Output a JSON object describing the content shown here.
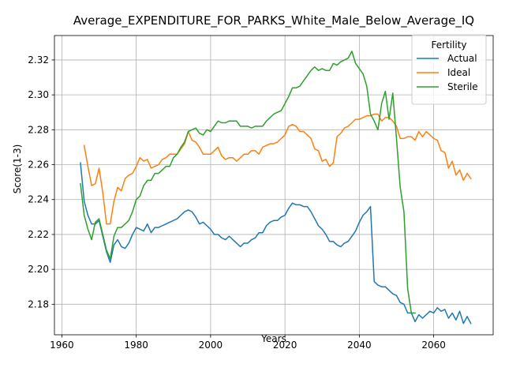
{
  "chart_data": {
    "type": "line",
    "title": "Average_EXPENDITURE_FOR_PARKS_White_Male_Below_Average_IQ",
    "xlabel": "Years",
    "ylabel": "Score(1-3)",
    "xlim": [
      1958,
      2076
    ],
    "ylim": [
      2.1625,
      2.334
    ],
    "xticks": [
      1960,
      1980,
      2000,
      2020,
      2040,
      2060
    ],
    "yticks": [
      2.18,
      2.2,
      2.22,
      2.24,
      2.26,
      2.28,
      2.3,
      2.32
    ],
    "ytick_labels": [
      "2.18",
      "2.20",
      "2.22",
      "2.24",
      "2.26",
      "2.28",
      "2.30",
      "2.32"
    ],
    "grid": true,
    "legend": {
      "title": "Fertility",
      "placement": "top-right"
    },
    "series": [
      {
        "name": "Actual",
        "color": "#1f77b4",
        "x": [
          1965,
          1966,
          1967,
          1968,
          1969,
          1970,
          1971,
          1972,
          1973,
          1974,
          1975,
          1976,
          1977,
          1978,
          1979,
          1980,
          1981,
          1982,
          1983,
          1984,
          1985,
          1986,
          1987,
          1988,
          1989,
          1990,
          1991,
          1992,
          1993,
          1994,
          1995,
          1996,
          1997,
          1998,
          1999,
          2000,
          2001,
          2002,
          2003,
          2004,
          2005,
          2006,
          2007,
          2008,
          2009,
          2010,
          2011,
          2012,
          2013,
          2014,
          2015,
          2016,
          2017,
          2018,
          2019,
          2020,
          2021,
          2022,
          2023,
          2024,
          2025,
          2026,
          2027,
          2028,
          2029,
          2030,
          2031,
          2032,
          2033,
          2034,
          2035,
          2036,
          2037,
          2038,
          2039,
          2040,
          2041,
          2042,
          2043,
          2044,
          2045,
          2046,
          2047,
          2048,
          2049,
          2050,
          2051,
          2052,
          2053,
          2054,
          2055,
          2056,
          2057,
          2058,
          2059,
          2060,
          2061,
          2062,
          2063,
          2064,
          2065,
          2066,
          2067,
          2068,
          2069,
          2070
        ],
        "values": [
          2.261,
          2.239,
          2.231,
          2.226,
          2.226,
          2.228,
          2.219,
          2.21,
          2.204,
          2.214,
          2.217,
          2.213,
          2.212,
          2.215,
          2.22,
          2.224,
          2.223,
          2.222,
          2.226,
          2.221,
          2.224,
          2.224,
          2.225,
          2.226,
          2.227,
          2.228,
          2.229,
          2.231,
          2.233,
          2.234,
          2.233,
          2.23,
          2.226,
          2.227,
          2.225,
          2.223,
          2.22,
          2.22,
          2.218,
          2.217,
          2.219,
          2.217,
          2.215,
          2.213,
          2.215,
          2.215,
          2.217,
          2.218,
          2.221,
          2.221,
          2.225,
          2.227,
          2.228,
          2.228,
          2.23,
          2.231,
          2.235,
          2.238,
          2.237,
          2.237,
          2.236,
          2.236,
          2.233,
          2.229,
          2.225,
          2.223,
          2.22,
          2.216,
          2.216,
          2.214,
          2.213,
          2.215,
          2.216,
          2.219,
          2.222,
          2.227,
          2.231,
          2.233,
          2.236,
          2.193,
          2.191,
          2.19,
          2.19,
          2.188,
          2.186,
          2.185,
          2.181,
          2.18,
          2.175,
          2.175,
          2.17,
          2.174,
          2.172,
          2.174,
          2.176,
          2.175,
          2.178,
          2.176,
          2.177,
          2.172,
          2.175,
          2.171,
          2.176,
          2.169,
          2.173,
          2.169
        ]
      },
      {
        "name": "Ideal",
        "color": "#ff7f0e",
        "x": [
          1966,
          1967,
          1968,
          1969,
          1970,
          1971,
          1972,
          1973,
          1974,
          1975,
          1976,
          1977,
          1978,
          1979,
          1980,
          1981,
          1982,
          1983,
          1984,
          1985,
          1986,
          1987,
          1988,
          1989,
          1990,
          1991,
          1992,
          1993,
          1994,
          1995,
          1996,
          1997,
          1998,
          1999,
          2000,
          2001,
          2002,
          2003,
          2004,
          2005,
          2006,
          2007,
          2008,
          2009,
          2010,
          2011,
          2012,
          2013,
          2014,
          2015,
          2016,
          2017,
          2018,
          2019,
          2020,
          2021,
          2022,
          2023,
          2024,
          2025,
          2026,
          2027,
          2028,
          2029,
          2030,
          2031,
          2032,
          2033,
          2034,
          2035,
          2036,
          2037,
          2038,
          2039,
          2040,
          2041,
          2042,
          2043,
          2044,
          2045,
          2046,
          2047,
          2048,
          2049,
          2050,
          2051,
          2052,
          2053,
          2054,
          2055,
          2056,
          2057,
          2058,
          2059,
          2060,
          2061,
          2062,
          2063,
          2064,
          2065,
          2066,
          2067,
          2068,
          2069,
          2070
        ],
        "values": [
          2.271,
          2.259,
          2.248,
          2.249,
          2.258,
          2.244,
          2.226,
          2.226,
          2.239,
          2.247,
          2.245,
          2.252,
          2.254,
          2.255,
          2.259,
          2.264,
          2.262,
          2.263,
          2.258,
          2.259,
          2.26,
          2.263,
          2.264,
          2.266,
          2.266,
          2.266,
          2.269,
          2.272,
          2.279,
          2.274,
          2.273,
          2.27,
          2.266,
          2.266,
          2.266,
          2.268,
          2.27,
          2.265,
          2.263,
          2.264,
          2.264,
          2.262,
          2.264,
          2.266,
          2.266,
          2.268,
          2.268,
          2.266,
          2.27,
          2.271,
          2.272,
          2.272,
          2.273,
          2.275,
          2.277,
          2.282,
          2.283,
          2.282,
          2.279,
          2.279,
          2.277,
          2.275,
          2.269,
          2.268,
          2.262,
          2.263,
          2.259,
          2.261,
          2.276,
          2.278,
          2.281,
          2.282,
          2.284,
          2.286,
          2.286,
          2.287,
          2.288,
          2.288,
          2.289,
          2.289,
          2.285,
          2.287,
          2.287,
          2.285,
          2.282,
          2.275,
          2.275,
          2.276,
          2.276,
          2.274,
          2.279,
          2.276,
          2.279,
          2.277,
          2.275,
          2.274,
          2.268,
          2.267,
          2.258,
          2.262,
          2.254,
          2.257,
          2.251,
          2.255,
          2.252
        ]
      },
      {
        "name": "Sterile",
        "color": "#2ca02c",
        "x": [
          1965,
          1966,
          1967,
          1968,
          1969,
          1970,
          1971,
          1972,
          1973,
          1974,
          1975,
          1976,
          1977,
          1978,
          1979,
          1980,
          1981,
          1982,
          1983,
          1984,
          1985,
          1986,
          1987,
          1988,
          1989,
          1990,
          1991,
          1992,
          1993,
          1994,
          1995,
          1996,
          1997,
          1998,
          1999,
          2000,
          2001,
          2002,
          2003,
          2004,
          2005,
          2006,
          2007,
          2008,
          2009,
          2010,
          2011,
          2012,
          2013,
          2014,
          2015,
          2016,
          2017,
          2018,
          2019,
          2020,
          2021,
          2022,
          2023,
          2024,
          2025,
          2026,
          2027,
          2028,
          2029,
          2030,
          2031,
          2032,
          2033,
          2034,
          2035,
          2036,
          2037,
          2038,
          2039,
          2040,
          2041,
          2042,
          2043,
          2044,
          2045,
          2046,
          2047,
          2048,
          2049,
          2050,
          2051,
          2052,
          2053,
          2054,
          2055
        ],
        "values": [
          2.249,
          2.231,
          2.223,
          2.217,
          2.227,
          2.229,
          2.22,
          2.211,
          2.206,
          2.219,
          2.224,
          2.224,
          2.226,
          2.228,
          2.233,
          2.24,
          2.242,
          2.248,
          2.251,
          2.251,
          2.255,
          2.255,
          2.257,
          2.259,
          2.259,
          2.264,
          2.266,
          2.27,
          2.273,
          2.279,
          2.28,
          2.281,
          2.278,
          2.277,
          2.28,
          2.279,
          2.282,
          2.285,
          2.284,
          2.284,
          2.285,
          2.285,
          2.285,
          2.282,
          2.282,
          2.282,
          2.281,
          2.282,
          2.282,
          2.282,
          2.285,
          2.287,
          2.289,
          2.29,
          2.291,
          2.295,
          2.299,
          2.304,
          2.304,
          2.305,
          2.308,
          2.311,
          2.314,
          2.316,
          2.314,
          2.315,
          2.314,
          2.314,
          2.318,
          2.317,
          2.319,
          2.32,
          2.321,
          2.325,
          2.318,
          2.315,
          2.312,
          2.305,
          2.289,
          2.285,
          2.28,
          2.295,
          2.302,
          2.286,
          2.301,
          2.275,
          2.247,
          2.233,
          2.189,
          2.175,
          2.175
        ]
      }
    ]
  }
}
